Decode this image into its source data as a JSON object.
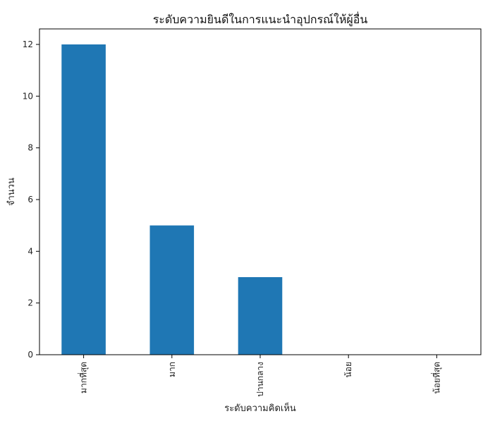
{
  "chart_data": {
    "type": "bar",
    "title": "ระดับความยินดีในการแนะนำอุปกรณ์ให้ผู้อื่น",
    "xlabel": "ระดับความคิดเห็น",
    "ylabel": "จำนวน",
    "categories": [
      "มากที่สุด",
      "มาก",
      "ปานกลาง",
      "น้อย",
      "น้อยที่สุด"
    ],
    "values": [
      12,
      5,
      3,
      0,
      0
    ],
    "ylim": [
      0,
      12.6
    ],
    "yticks": [
      0,
      2,
      4,
      6,
      8,
      10,
      12
    ],
    "bar_color": "#1f77b4",
    "grid": false,
    "legend": "none"
  }
}
